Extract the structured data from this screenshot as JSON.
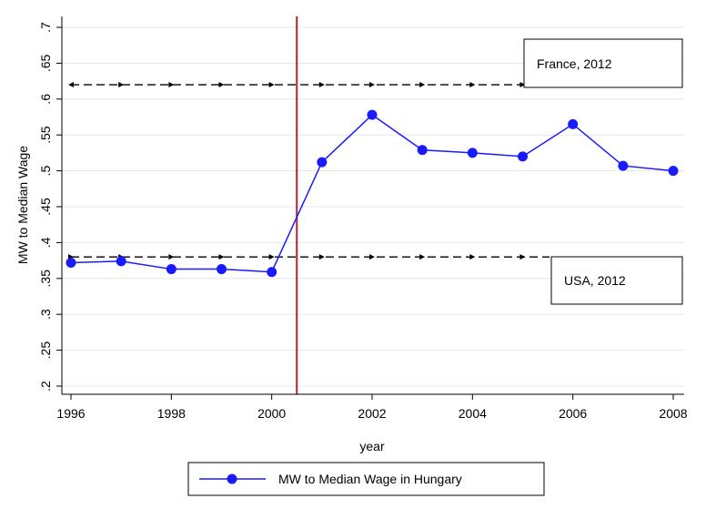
{
  "chart_data": {
    "type": "line",
    "xlabel": "year",
    "ylabel": "MW to Median Wage",
    "xlim": [
      1996,
      2008
    ],
    "ylim": [
      0.2,
      0.7
    ],
    "xticks": [
      1996,
      1998,
      2000,
      2002,
      2004,
      2006,
      2008
    ],
    "xtick_labels": [
      "1996",
      "1998",
      "2000",
      "2002",
      "2004",
      "2006",
      "2008"
    ],
    "yticks": [
      0.2,
      0.25,
      0.3,
      0.35,
      0.4,
      0.45,
      0.5,
      0.55,
      0.6,
      0.65,
      0.7
    ],
    "ytick_labels": [
      ".2",
      ".25",
      ".3",
      ".35",
      ".4",
      ".45",
      ".5",
      ".55",
      ".6",
      ".65",
      ".7"
    ],
    "grid": "horizontal",
    "legend_position": "bottom",
    "series": [
      {
        "name": "MW to Median Wage in Hungary",
        "color": "#1a1aff",
        "x": [
          1996,
          1997,
          1998,
          1999,
          2000,
          2001,
          2002,
          2003,
          2004,
          2005,
          2006,
          2007,
          2008
        ],
        "y": [
          0.372,
          0.374,
          0.363,
          0.363,
          0.359,
          0.512,
          0.578,
          0.529,
          0.525,
          0.52,
          0.565,
          0.507,
          0.5
        ]
      }
    ],
    "reference_lines": [
      {
        "label": "France, 2012",
        "y": 0.62,
        "style": "dashed"
      },
      {
        "label": "USA, 2012",
        "y": 0.38,
        "style": "dashed"
      }
    ],
    "vertical_line": {
      "x": 2000.5,
      "color": "#b22234"
    }
  }
}
